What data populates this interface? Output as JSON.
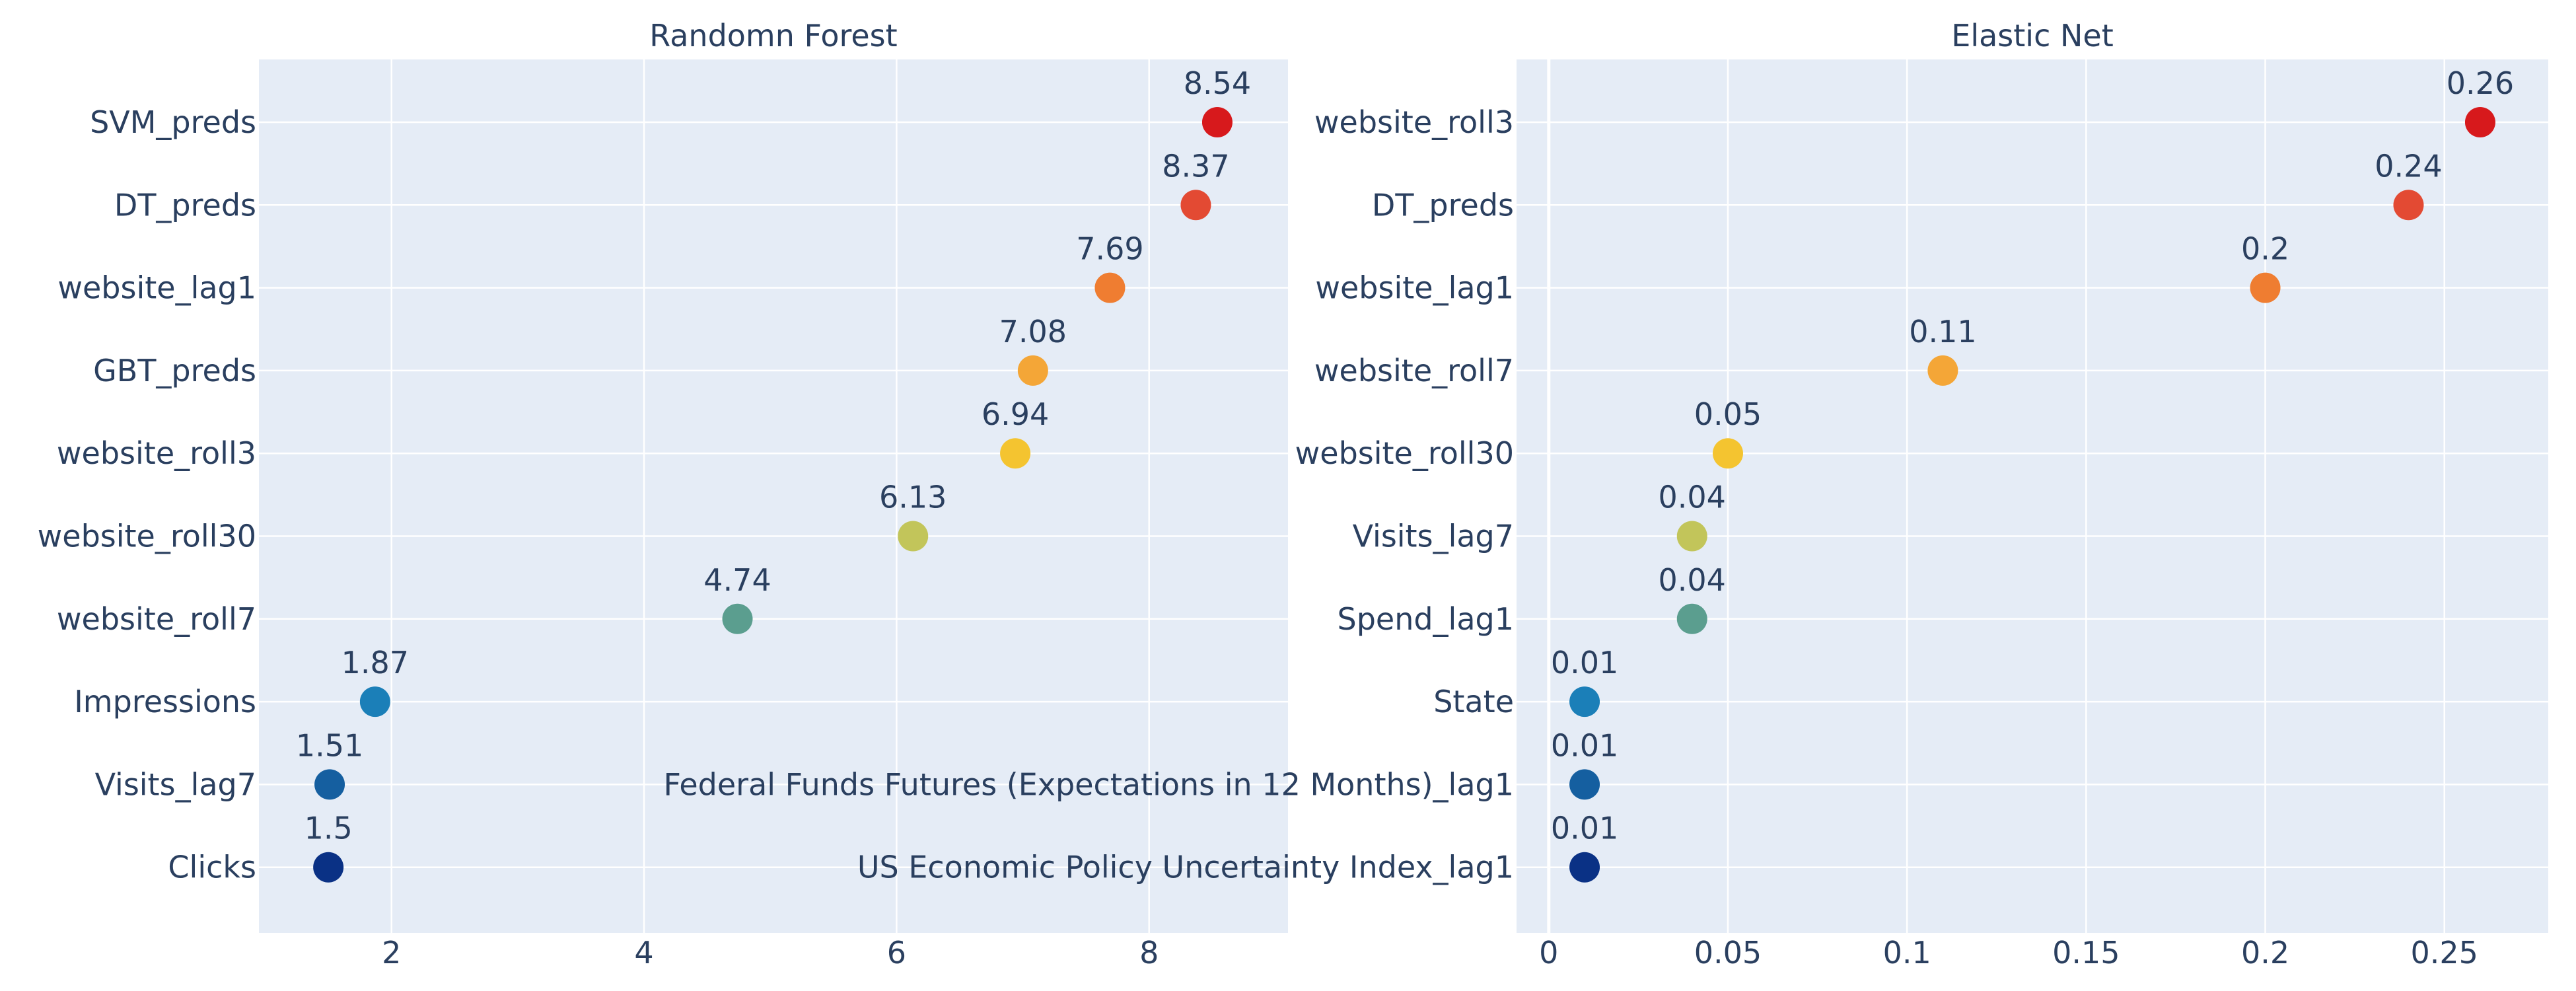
{
  "chart_data": [
    {
      "type": "scatter",
      "title": "Randomn Forest",
      "xlabel": "",
      "ylabel": "",
      "xlim": [
        0.95,
        9.1
      ],
      "xticks": [
        2,
        4,
        6,
        8
      ],
      "xtick_labels": [
        "2",
        "4",
        "6",
        "8"
      ],
      "grid": true,
      "legend": "none",
      "categories": [
        "SVM_preds",
        "DT_preds",
        "website_lag1",
        "GBT_preds",
        "website_roll3",
        "website_roll30",
        "website_roll7",
        "Impressions",
        "Visits_lag7",
        "Clicks"
      ],
      "values": [
        8.54,
        8.37,
        7.69,
        7.08,
        6.94,
        6.13,
        4.74,
        1.87,
        1.51,
        1.5
      ],
      "data_labels": [
        "8.54",
        "8.37",
        "7.69",
        "7.08",
        "6.94",
        "6.13",
        "4.74",
        "1.87",
        "1.51",
        "1.5"
      ],
      "colors": [
        "#d7191c",
        "#e34a33",
        "#ef7d31",
        "#f4a637",
        "#f4c430",
        "#c2c55a",
        "#5b9e8f",
        "#1b7fb8",
        "#155fa0",
        "#0a3185"
      ]
    },
    {
      "type": "scatter",
      "title": "Elastic Net",
      "xlabel": "",
      "ylabel": "",
      "xlim": [
        -0.009,
        0.279
      ],
      "xticks": [
        0,
        0.05,
        0.1,
        0.15,
        0.2,
        0.25
      ],
      "xtick_labels": [
        "0",
        "0.05",
        "0.1",
        "0.15",
        "0.2",
        "0.25"
      ],
      "grid": true,
      "legend": "none",
      "categories": [
        "website_roll3",
        "DT_preds",
        "website_lag1",
        "website_roll7",
        "website_roll30",
        "Visits_lag7",
        "Spend_lag1",
        "State",
        "Federal Funds Futures (Expectations in 12 Months)_lag1",
        "US Economic Policy Uncertainty Index_lag1"
      ],
      "values": [
        0.26,
        0.24,
        0.2,
        0.11,
        0.05,
        0.04,
        0.04,
        0.01,
        0.01,
        0.01
      ],
      "data_labels": [
        "0.26",
        "0.24",
        "0.2",
        "0.11",
        "0.05",
        "0.04",
        "0.04",
        "0.01",
        "0.01",
        "0.01"
      ],
      "colors": [
        "#d7191c",
        "#e34a33",
        "#ef7d31",
        "#f4a637",
        "#f4c430",
        "#c2c55a",
        "#5b9e8f",
        "#1b7fb8",
        "#155fa0",
        "#0a3185"
      ]
    }
  ],
  "style": {
    "plot_bg": "#e5ecf6",
    "grid_color": "#ffffff",
    "text_color": "#2a3f5f"
  }
}
